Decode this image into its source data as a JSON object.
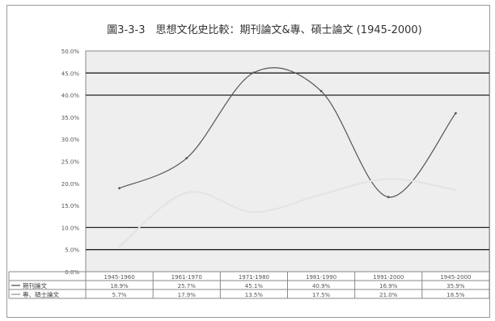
{
  "chart_data": {
    "type": "line",
    "title": "圖3-3-3　思想文化史比較：期刊論文&專、碩士論文 (1945-2000)",
    "categories": [
      "1945-1960",
      "1961-1970",
      "1971-1980",
      "1981-1990",
      "1991-2000",
      "1945-2000"
    ],
    "ylim": [
      0,
      50
    ],
    "yticks": [
      "0.0%",
      "5.0%",
      "10.0%",
      "15.0%",
      "20.0%",
      "25.0%",
      "30.0%",
      "35.0%",
      "40.0%",
      "45.0%",
      "50.0%"
    ],
    "grid": true,
    "series": [
      {
        "name": "期刊論文",
        "color": "#555555",
        "values": [
          18.9,
          25.7,
          45.1,
          40.9,
          16.9,
          35.9
        ],
        "labels": [
          "18.9%",
          "25.7%",
          "45.1%",
          "40.9%",
          "16.9%",
          "35.9%"
        ]
      },
      {
        "name": "專、碩士論文",
        "color": "#e3e3e3",
        "values": [
          5.7,
          17.9,
          13.5,
          17.5,
          21.0,
          18.5
        ],
        "labels": [
          "5.7%",
          "17.9%",
          "13.5%",
          "17.5%",
          "21.0%",
          "18.5%"
        ]
      }
    ]
  }
}
